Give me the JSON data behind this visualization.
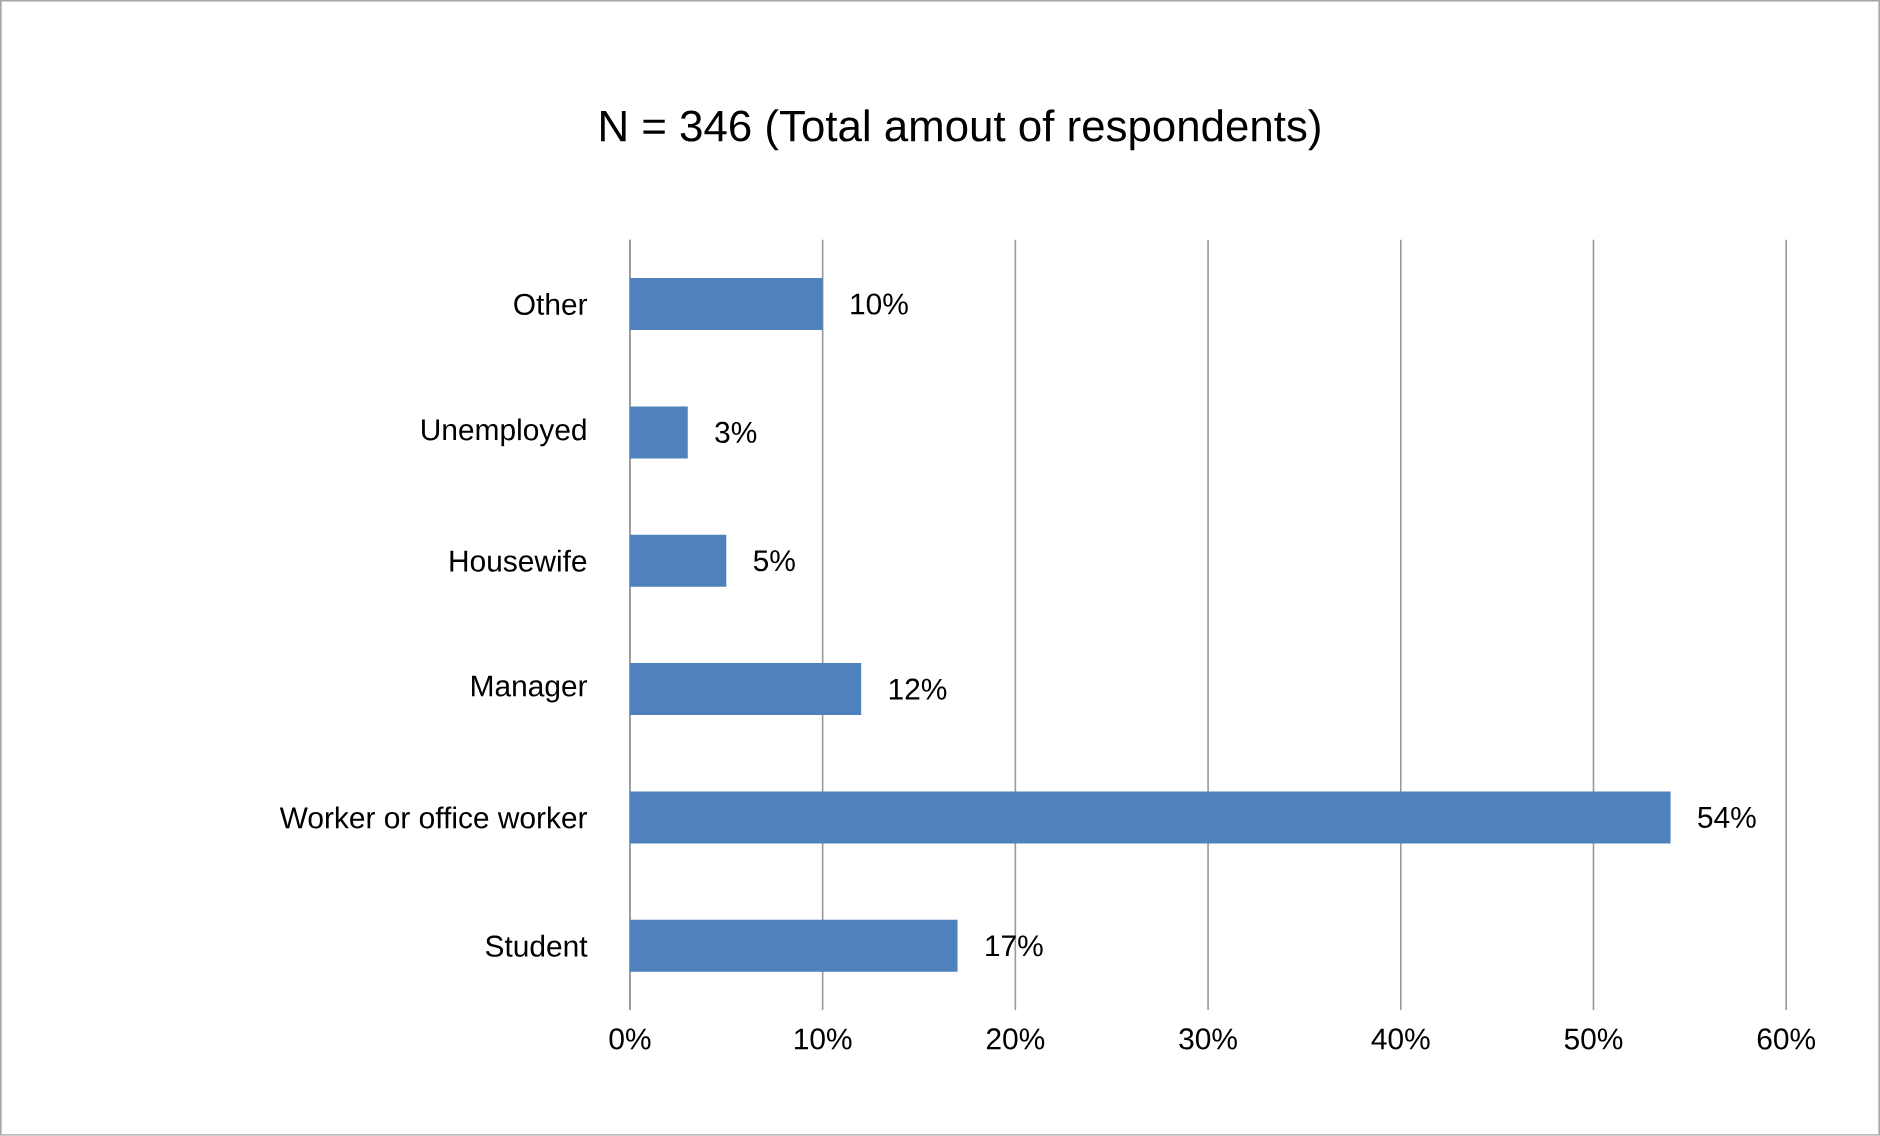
{
  "chart_data": {
    "type": "bar",
    "orientation": "horizontal",
    "title": "N = 346 (Total amout of respondents)",
    "categories": [
      "Other",
      "Unemployed",
      "Housewife",
      "Manager",
      "Worker or office worker",
      "Student"
    ],
    "values": [
      10,
      3,
      5,
      12,
      54,
      17
    ],
    "value_labels": [
      "10%",
      "3%",
      "5%",
      "12%",
      "54%",
      "17%"
    ],
    "color": "#4f81bd",
    "xlim": [
      0,
      60
    ],
    "xticks": [
      {
        "value": 0,
        "label": "0%"
      },
      {
        "value": 10,
        "label": "10%"
      },
      {
        "value": 20,
        "label": "20%"
      },
      {
        "value": 30,
        "label": "30%"
      },
      {
        "value": 40,
        "label": "40%"
      },
      {
        "value": 50,
        "label": "50%"
      },
      {
        "value": 60,
        "label": "60%"
      }
    ],
    "grid": "x"
  }
}
